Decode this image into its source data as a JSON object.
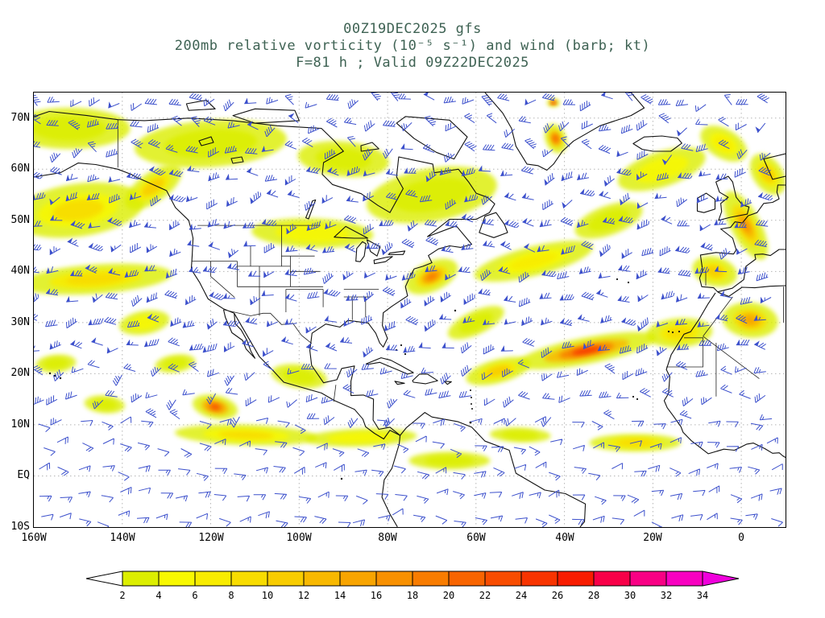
{
  "header": {
    "line1": "00Z19DEC2025 gfs",
    "line2": "200mb relative vorticity (10⁻⁵ s⁻¹) and wind (barb; kt)",
    "line3": "F=81 h ; Valid 09Z22DEC2025"
  },
  "colors": {
    "title_text": "#3e6253",
    "axis_text": "#000000",
    "barb": "#3c50cc",
    "coastline": "#111111",
    "grid": "#b5b5b5",
    "frame": "#000000"
  },
  "chart_data": {
    "type": "heatmap",
    "title": "00Z19DEC2025 gfs",
    "subtitle": "200mb relative vorticity (10⁻⁵ s⁻¹) and wind (barb; kt)",
    "annotation": "F=81 h ; Valid 09Z22DEC2025",
    "model": "gfs",
    "init_time": "00Z19DEC2025",
    "forecast_hour": 81,
    "valid_time": "09Z22DEC2025",
    "level": "200mb",
    "field": "relative vorticity",
    "field_units": "10⁻⁵ s⁻¹",
    "wind_symbol": "barb",
    "wind_units": "kt",
    "lon_range_deg": [
      -160,
      10
    ],
    "lat_range_deg": [
      -10,
      75
    ],
    "x_ticks": [
      {
        "label": "160W",
        "lon": -160
      },
      {
        "label": "140W",
        "lon": -140
      },
      {
        "label": "120W",
        "lon": -120
      },
      {
        "label": "100W",
        "lon": -100
      },
      {
        "label": "80W",
        "lon": -80
      },
      {
        "label": "60W",
        "lon": -60
      },
      {
        "label": "40W",
        "lon": -40
      },
      {
        "label": "20W",
        "lon": -20
      },
      {
        "label": "0",
        "lon": 0
      }
    ],
    "y_ticks": [
      {
        "label": "70N",
        "lat": 70
      },
      {
        "label": "60N",
        "lat": 60
      },
      {
        "label": "50N",
        "lat": 50
      },
      {
        "label": "40N",
        "lat": 40
      },
      {
        "label": "30N",
        "lat": 30
      },
      {
        "label": "20N",
        "lat": 20
      },
      {
        "label": "10N",
        "lat": 10
      },
      {
        "label": "EQ",
        "lat": 0
      },
      {
        "label": "10S",
        "lat": -10
      }
    ],
    "grid_lats": [
      70,
      60,
      50,
      40,
      30,
      20,
      10,
      0
    ],
    "grid_lons": [
      -140,
      -120,
      -100,
      -80,
      -60,
      -40,
      -20,
      0
    ],
    "colorbar": {
      "tick_labels": [
        2,
        4,
        6,
        8,
        10,
        12,
        14,
        16,
        18,
        20,
        22,
        24,
        26,
        28,
        30,
        32,
        34
      ],
      "segment_colors": [
        "#dcee00",
        "#f8f800",
        "#f8ec00",
        "#f8dc00",
        "#f8cc00",
        "#f8b800",
        "#f8a400",
        "#f89000",
        "#f87c00",
        "#f86400",
        "#f84c00",
        "#f83400",
        "#f81c00",
        "#f80048",
        "#f80084",
        "#f800c0"
      ],
      "under_color": "#ffffff",
      "over_color": "#f000dc"
    },
    "vorticity_maxima": [
      {
        "lon": -150,
        "lat": 52,
        "len_deg": 26,
        "wid_deg": 9,
        "rot_deg": -8,
        "value": 10
      },
      {
        "lon": -133,
        "lat": 56.5,
        "len_deg": 13,
        "wid_deg": 5,
        "rot_deg": -35,
        "value": 14
      },
      {
        "lon": -146,
        "lat": 38.5,
        "len_deg": 30,
        "wid_deg": 5,
        "rot_deg": -4,
        "value": 12
      },
      {
        "lon": -152,
        "lat": 68,
        "len_deg": 24,
        "wid_deg": 7,
        "rot_deg": 0,
        "value": 6
      },
      {
        "lon": -120,
        "lat": 65,
        "len_deg": 30,
        "wid_deg": 8,
        "rot_deg": -4,
        "value": 6
      },
      {
        "lon": -90,
        "lat": 62,
        "len_deg": 18,
        "wid_deg": 6,
        "rot_deg": 5,
        "value": 6
      },
      {
        "lon": -97,
        "lat": 47.5,
        "len_deg": 24,
        "wid_deg": 5,
        "rot_deg": 2,
        "value": 8
      },
      {
        "lon": -70,
        "lat": 55,
        "len_deg": 26,
        "wid_deg": 9,
        "rot_deg": -10,
        "value": 7
      },
      {
        "lon": -119,
        "lat": 13.5,
        "len_deg": 9,
        "wid_deg": 4,
        "rot_deg": 12,
        "value": 22
      },
      {
        "lon": -112,
        "lat": 8,
        "len_deg": 28,
        "wid_deg": 3.5,
        "rot_deg": 2,
        "value": 10
      },
      {
        "lon": -86,
        "lat": 7.5,
        "len_deg": 22,
        "wid_deg": 3,
        "rot_deg": -2,
        "value": 8
      },
      {
        "lon": -70,
        "lat": 39,
        "len_deg": 11,
        "wid_deg": 5,
        "rot_deg": -25,
        "value": 18
      },
      {
        "lon": -47,
        "lat": 42,
        "len_deg": 24,
        "wid_deg": 5,
        "rot_deg": -14,
        "value": 9
      },
      {
        "lon": -55,
        "lat": 20.5,
        "len_deg": 13,
        "wid_deg": 4,
        "rot_deg": -15,
        "value": 13
      },
      {
        "lon": -35,
        "lat": 24.5,
        "len_deg": 28,
        "wid_deg": 4.5,
        "rot_deg": -11,
        "value": 24
      },
      {
        "lon": -14,
        "lat": 28,
        "len_deg": 13,
        "wid_deg": 5,
        "rot_deg": -4,
        "value": 12
      },
      {
        "lon": 2,
        "lat": 30.5,
        "len_deg": 11,
        "wid_deg": 6,
        "rot_deg": 6,
        "value": 15
      },
      {
        "lon": -42,
        "lat": 66,
        "len_deg": 6,
        "wid_deg": 3.5,
        "rot_deg": 70,
        "value": 20
      },
      {
        "lon": -42.5,
        "lat": 73,
        "len_deg": 2.5,
        "wid_deg": 1.4,
        "rot_deg": 0,
        "value": 26
      },
      {
        "lon": 1,
        "lat": 49,
        "len_deg": 15,
        "wid_deg": 5,
        "rot_deg": 62,
        "value": 17
      },
      {
        "lon": -6,
        "lat": 40,
        "len_deg": 9,
        "wid_deg": 5,
        "rot_deg": 15,
        "value": 13
      },
      {
        "lon": -24,
        "lat": 6.5,
        "len_deg": 18,
        "wid_deg": 3,
        "rot_deg": 0,
        "value": 12
      },
      {
        "lon": -18,
        "lat": 60,
        "len_deg": 18,
        "wid_deg": 6,
        "rot_deg": -18,
        "value": 8
      },
      {
        "lon": 6,
        "lat": 59,
        "len_deg": 9,
        "wid_deg": 5,
        "rot_deg": 55,
        "value": 13
      },
      {
        "lon": -100,
        "lat": 19.5,
        "len_deg": 11,
        "wid_deg": 4,
        "rot_deg": 8,
        "value": 7
      },
      {
        "lon": -66,
        "lat": 3,
        "len_deg": 16,
        "wid_deg": 3,
        "rot_deg": 0,
        "value": 7
      },
      {
        "lon": -30,
        "lat": 50,
        "len_deg": 14,
        "wid_deg": 5,
        "rot_deg": -20,
        "value": 7
      },
      {
        "lon": -60,
        "lat": 30,
        "len_deg": 12,
        "wid_deg": 4,
        "rot_deg": -25,
        "value": 7
      },
      {
        "lon": -135,
        "lat": 30,
        "len_deg": 10,
        "wid_deg": 4,
        "rot_deg": -10,
        "value": 8
      },
      {
        "lon": -4,
        "lat": 65,
        "len_deg": 10,
        "wid_deg": 5,
        "rot_deg": 30,
        "value": 9
      },
      {
        "lon": -50,
        "lat": 8,
        "len_deg": 12,
        "wid_deg": 2.5,
        "rot_deg": 2,
        "value": 7
      },
      {
        "lon": -155,
        "lat": 22,
        "len_deg": 8,
        "wid_deg": 3,
        "rot_deg": -5,
        "value": 6
      },
      {
        "lon": -144,
        "lat": 14,
        "len_deg": 8,
        "wid_deg": 3,
        "rot_deg": 5,
        "value": 7
      },
      {
        "lon": -128,
        "lat": 22,
        "len_deg": 8,
        "wid_deg": 3,
        "rot_deg": -8,
        "value": 6
      }
    ]
  }
}
